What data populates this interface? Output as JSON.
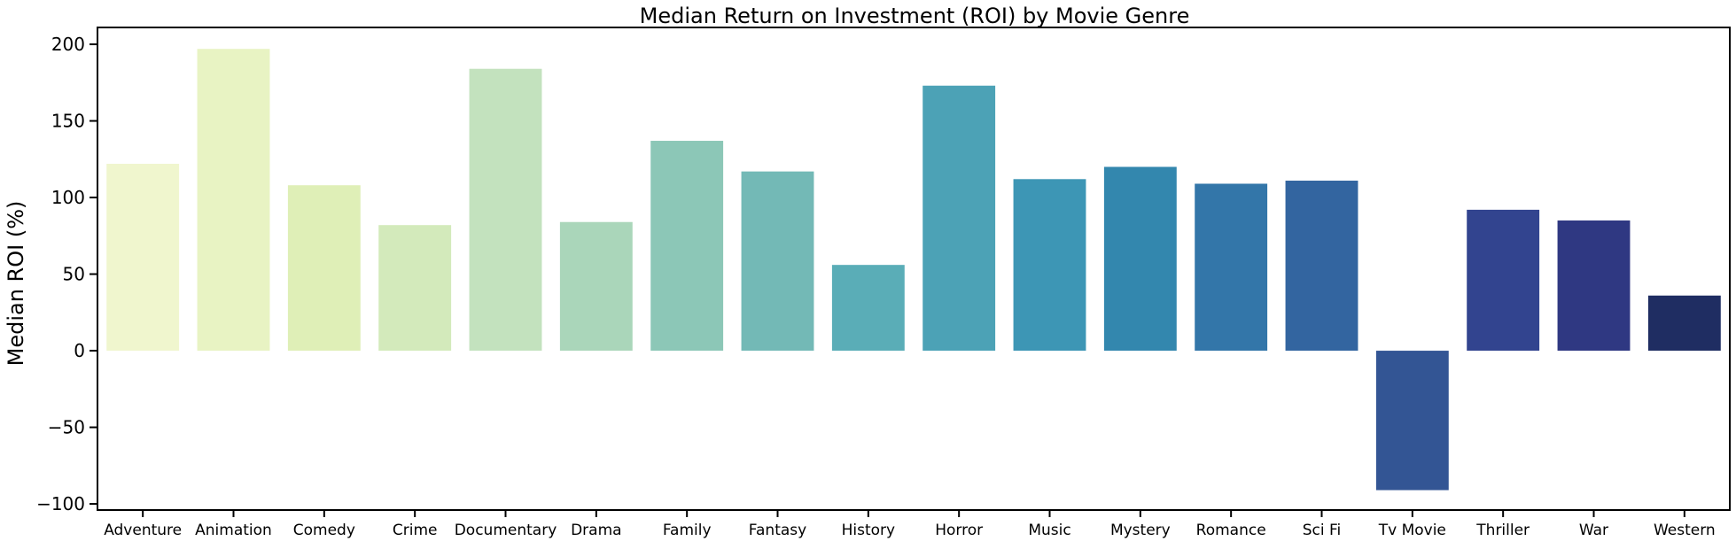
{
  "chart_data": {
    "type": "bar",
    "title": "Median Return on Investment (ROI) by Movie Genre",
    "xlabel": "",
    "ylabel": "Median ROI (%)",
    "categories": [
      "Adventure",
      "Animation",
      "Comedy",
      "Crime",
      "Documentary",
      "Drama",
      "Family",
      "Fantasy",
      "History",
      "Horror",
      "Music",
      "Mystery",
      "Romance",
      "Sci Fi",
      "Tv Movie",
      "Thriller",
      "War",
      "Western"
    ],
    "values": [
      122,
      197,
      108,
      82,
      184,
      84,
      137,
      117,
      56,
      173,
      112,
      120,
      109,
      111,
      -91,
      92,
      85,
      36
    ],
    "colors": [
      "#f0f6ce",
      "#e8f3c3",
      "#dfefb7",
      "#d3eabb",
      "#c3e2be",
      "#aad6ba",
      "#8cc7b7",
      "#73b9b6",
      "#5aadb7",
      "#4ca2b6",
      "#3d96b5",
      "#3387ae",
      "#3376a9",
      "#3365a0",
      "#335594",
      "#32448f",
      "#2f3882",
      "#1f2d62"
    ],
    "ylim": [
      -104,
      211
    ],
    "yticks": [
      -100,
      -50,
      0,
      50,
      100,
      150,
      200
    ],
    "yticklabels": [
      "−100",
      "−50",
      "0",
      "50",
      "100",
      "150",
      "200"
    ],
    "grid": false,
    "legend": "none"
  }
}
